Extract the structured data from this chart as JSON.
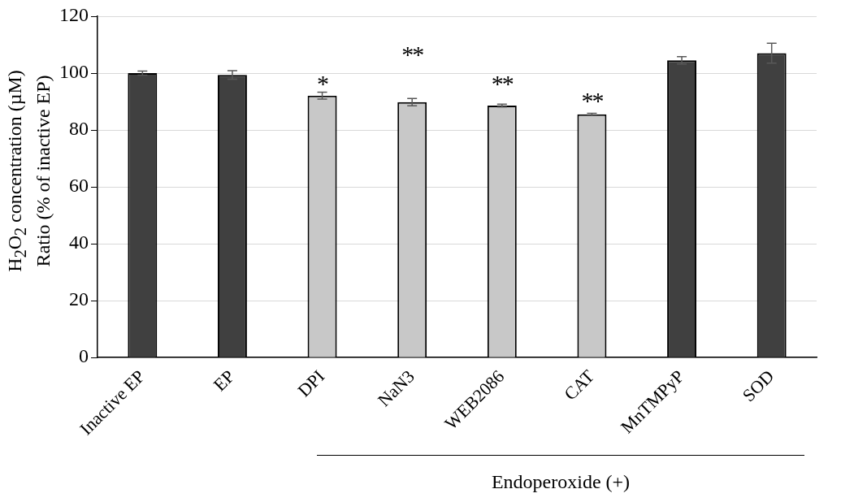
{
  "chart_data": {
    "type": "bar",
    "ylabel": "H$_{2}$O$_{2}$ concentration (µM)\nRatio (% of inactive EP)",
    "categories": [
      "Inactive EP",
      "EP",
      "DPI",
      "NaN3",
      "WEB2086",
      "CAT",
      "MnTMPyP",
      "SOD"
    ],
    "values": [
      100,
      99.4,
      92.1,
      89.8,
      88.6,
      85.5,
      104.5,
      107
    ],
    "errors": [
      0.7,
      1.5,
      1.2,
      1.3,
      0.5,
      0.4,
      1.3,
      3.5
    ],
    "colors": [
      "#404040",
      "#404040",
      "#c8c8c8",
      "#c8c8c8",
      "#c8c8c8",
      "#c8c8c8",
      "#404040",
      "#404040"
    ],
    "ylim": [
      0,
      120
    ],
    "yticks": [
      0,
      20,
      40,
      60,
      80,
      100,
      120
    ],
    "grid": "y",
    "legend": false,
    "annotations": [
      "*",
      "**",
      "**",
      "**",
      "Endoperoxide (+)"
    ]
  }
}
